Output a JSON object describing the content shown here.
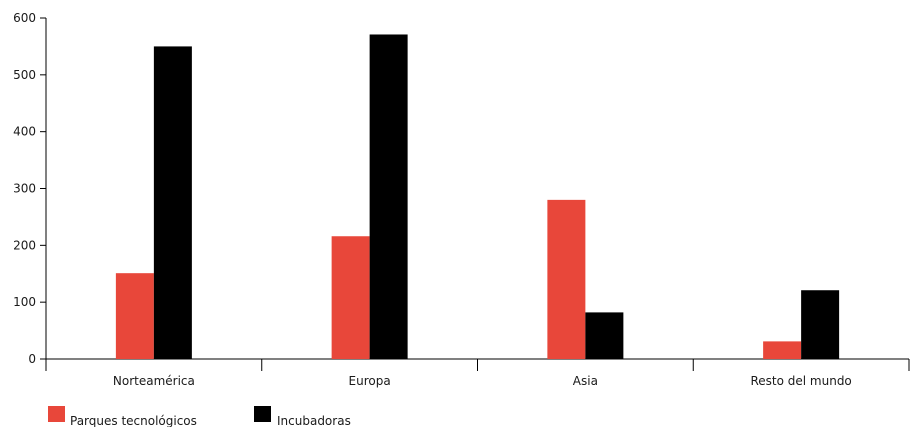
{
  "chart_data": {
    "type": "bar",
    "title": "",
    "xlabel": "",
    "ylabel": "",
    "categories": [
      "Norteamérica",
      "Europa",
      "Asia",
      "Resto del mundo"
    ],
    "series": [
      {
        "name": "Parques tecnológicos",
        "color": "#e8473a",
        "values": [
          151,
          216,
          280,
          31
        ]
      },
      {
        "name": "Incubadoras",
        "color": "#000000",
        "values": [
          550,
          571,
          82,
          121
        ]
      }
    ],
    "ylim": [
      0,
      600
    ],
    "yticks": [
      "0",
      "100",
      "200",
      "300",
      "400",
      "500",
      "600"
    ],
    "grid": false,
    "legend_position": "bottom-left"
  }
}
